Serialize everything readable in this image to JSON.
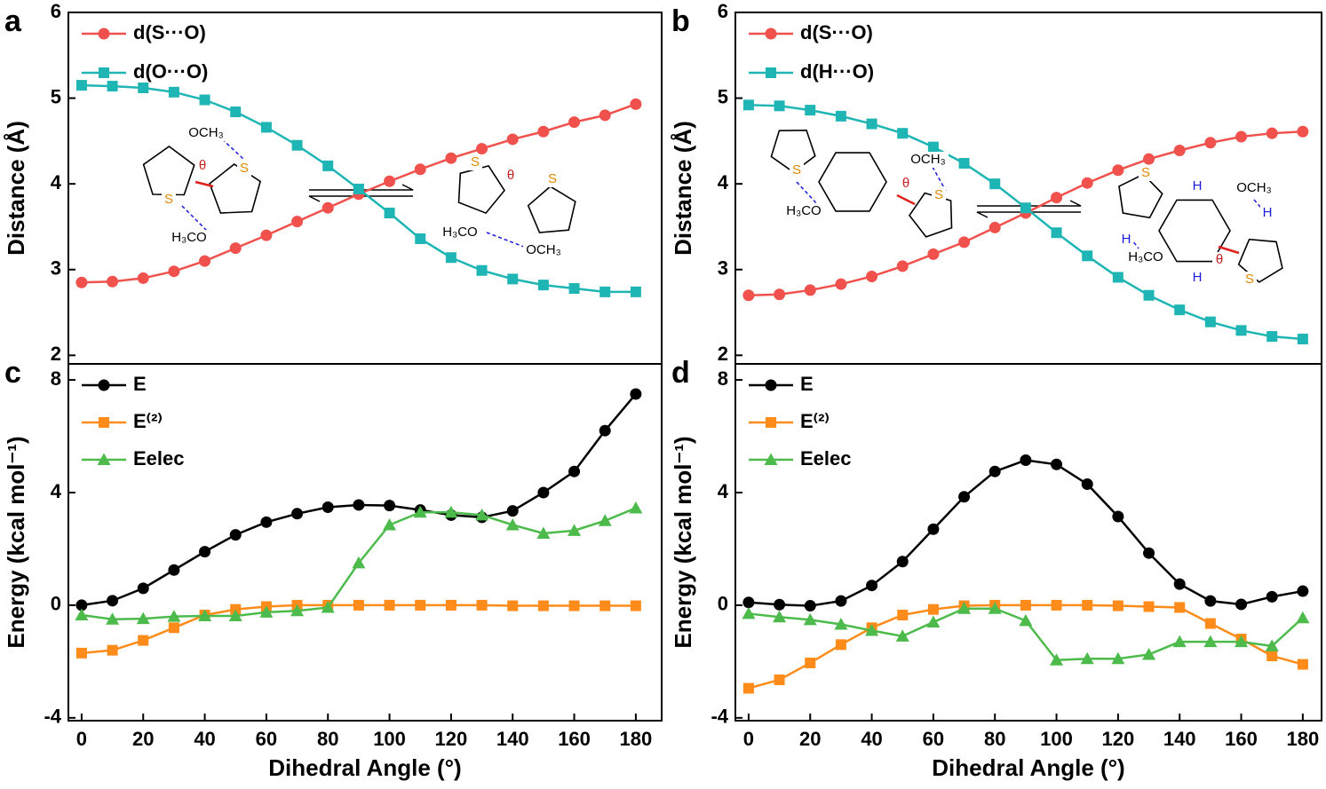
{
  "chart_data": [
    {
      "type": "line",
      "panel": "a",
      "ylabel": "Distance (Å)",
      "legend": "upper left",
      "x": [
        0,
        10,
        20,
        30,
        40,
        50,
        60,
        70,
        80,
        90,
        100,
        110,
        120,
        130,
        140,
        150,
        160,
        170,
        180
      ],
      "xlim": [
        -4.3,
        188.4
      ],
      "ylim": [
        1.9,
        6
      ],
      "yticks": [
        2,
        3,
        4,
        5,
        6
      ],
      "series": [
        {
          "name": "d(S···O)",
          "color": "#f0514d",
          "marker": "circle",
          "values": [
            2.85,
            2.86,
            2.9,
            2.98,
            3.1,
            3.25,
            3.4,
            3.56,
            3.72,
            3.88,
            4.03,
            4.17,
            4.3,
            4.41,
            4.52,
            4.61,
            4.72,
            4.8,
            4.93
          ]
        },
        {
          "name": "d(O···O)",
          "color": "#1fb5b5",
          "marker": "square",
          "values": [
            5.15,
            5.14,
            5.12,
            5.07,
            4.98,
            4.84,
            4.66,
            4.45,
            4.21,
            3.94,
            3.66,
            3.36,
            3.14,
            2.99,
            2.89,
            2.82,
            2.78,
            2.74,
            2.74
          ]
        }
      ],
      "annotations": [
        "OCH₃",
        "θ",
        "S",
        "S",
        "H₃CO",
        "S",
        "θ",
        "S",
        "H₃CO",
        "OCH₃"
      ]
    },
    {
      "type": "line",
      "panel": "b",
      "ylabel": "Distance (Å)",
      "legend": "upper left",
      "x": [
        0,
        10,
        20,
        30,
        40,
        50,
        60,
        70,
        80,
        90,
        100,
        110,
        120,
        130,
        140,
        150,
        160,
        170,
        180
      ],
      "xlim": [
        -4.3,
        186.1
      ],
      "ylim": [
        1.9,
        6
      ],
      "yticks": [
        2,
        3,
        4,
        5,
        6
      ],
      "series": [
        {
          "name": "d(S···O)",
          "color": "#f0514d",
          "marker": "circle",
          "values": [
            2.7,
            2.71,
            2.76,
            2.83,
            2.92,
            3.04,
            3.18,
            3.32,
            3.49,
            3.66,
            3.84,
            4.01,
            4.16,
            4.29,
            4.39,
            4.48,
            4.55,
            4.59,
            4.61
          ]
        },
        {
          "name": "d(H···O)",
          "color": "#1fb5b5",
          "marker": "square",
          "values": [
            4.92,
            4.91,
            4.86,
            4.79,
            4.7,
            4.59,
            4.43,
            4.24,
            4.0,
            3.72,
            3.43,
            3.16,
            2.91,
            2.7,
            2.53,
            2.39,
            2.29,
            2.22,
            2.19
          ]
        }
      ],
      "annotations": [
        "S",
        "OCH₃",
        "θ",
        "S",
        "H₃CO",
        "S",
        "H",
        "OCH₃",
        "H",
        "H",
        "H₃CO",
        "θ",
        "H",
        "S"
      ]
    },
    {
      "type": "line",
      "panel": "c",
      "ylabel": "Energy (kcal mol⁻¹)",
      "xlabel": "Dihedral Angle (°)",
      "legend": "upper left",
      "x": [
        0,
        10,
        20,
        30,
        40,
        50,
        60,
        70,
        80,
        90,
        100,
        110,
        120,
        130,
        140,
        150,
        160,
        170,
        180
      ],
      "xlim": [
        -4.3,
        188.4
      ],
      "xticks": [
        0,
        20,
        40,
        60,
        80,
        100,
        120,
        140,
        160,
        180
      ],
      "ylim": [
        -4.1,
        8.57
      ],
      "yticks": [
        -4,
        0,
        4,
        8
      ],
      "series": [
        {
          "name": "E",
          "color": "#000000",
          "marker": "circle",
          "values": [
            0,
            0.16,
            0.6,
            1.25,
            1.9,
            2.5,
            2.95,
            3.25,
            3.48,
            3.56,
            3.54,
            3.38,
            3.2,
            3.12,
            3.35,
            4.0,
            4.75,
            6.2,
            7.5
          ]
        },
        {
          "name": "E⁽²⁾",
          "color": "#ff8c1a",
          "marker": "square",
          "values": [
            -1.7,
            -1.6,
            -1.25,
            -0.8,
            -0.35,
            -0.15,
            -0.05,
            0,
            0,
            0,
            0,
            0,
            0,
            0,
            -0.02,
            -0.02,
            -0.02,
            -0.02,
            -0.02
          ]
        },
        {
          "name": "Eelec",
          "color": "#4cbb4c",
          "marker": "triangle",
          "values": [
            -0.35,
            -0.5,
            -0.48,
            -0.4,
            -0.38,
            -0.38,
            -0.25,
            -0.2,
            -0.08,
            1.5,
            2.85,
            3.3,
            3.3,
            3.2,
            2.85,
            2.55,
            2.65,
            3.0,
            3.45
          ]
        }
      ]
    },
    {
      "type": "line",
      "panel": "d",
      "ylabel": "Energy (kcal mol⁻¹)",
      "xlabel": "Dihedral Angle (°)",
      "legend": "upper left",
      "x": [
        0,
        10,
        20,
        30,
        40,
        50,
        60,
        70,
        80,
        90,
        100,
        110,
        120,
        130,
        140,
        150,
        160,
        170,
        180
      ],
      "xlim": [
        -4.3,
        186.1
      ],
      "xticks": [
        0,
        20,
        40,
        60,
        80,
        100,
        120,
        140,
        160,
        180
      ],
      "ylim": [
        -4.1,
        8.57
      ],
      "yticks": [
        -4,
        0,
        4,
        8
      ],
      "series": [
        {
          "name": "E",
          "color": "#000000",
          "marker": "circle",
          "values": [
            0.1,
            0.02,
            -0.02,
            0.15,
            0.7,
            1.55,
            2.7,
            3.85,
            4.75,
            5.15,
            5.0,
            4.3,
            3.15,
            1.85,
            0.75,
            0.15,
            0.03,
            0.3,
            0.5
          ]
        },
        {
          "name": "E⁽²⁾",
          "color": "#ff8c1a",
          "marker": "square",
          "values": [
            -2.95,
            -2.65,
            -2.05,
            -1.4,
            -0.8,
            -0.35,
            -0.15,
            -0.02,
            0,
            0,
            0,
            0,
            -0.02,
            -0.05,
            -0.08,
            -0.65,
            -1.2,
            -1.8,
            -2.1
          ]
        },
        {
          "name": "Eelec",
          "color": "#4cbb4c",
          "marker": "triangle",
          "values": [
            -0.3,
            -0.42,
            -0.52,
            -0.68,
            -0.9,
            -1.1,
            -0.6,
            -0.12,
            -0.12,
            -0.55,
            -1.95,
            -1.9,
            -1.9,
            -1.75,
            -1.3,
            -1.3,
            -1.3,
            -1.45,
            -0.45
          ]
        }
      ]
    }
  ]
}
